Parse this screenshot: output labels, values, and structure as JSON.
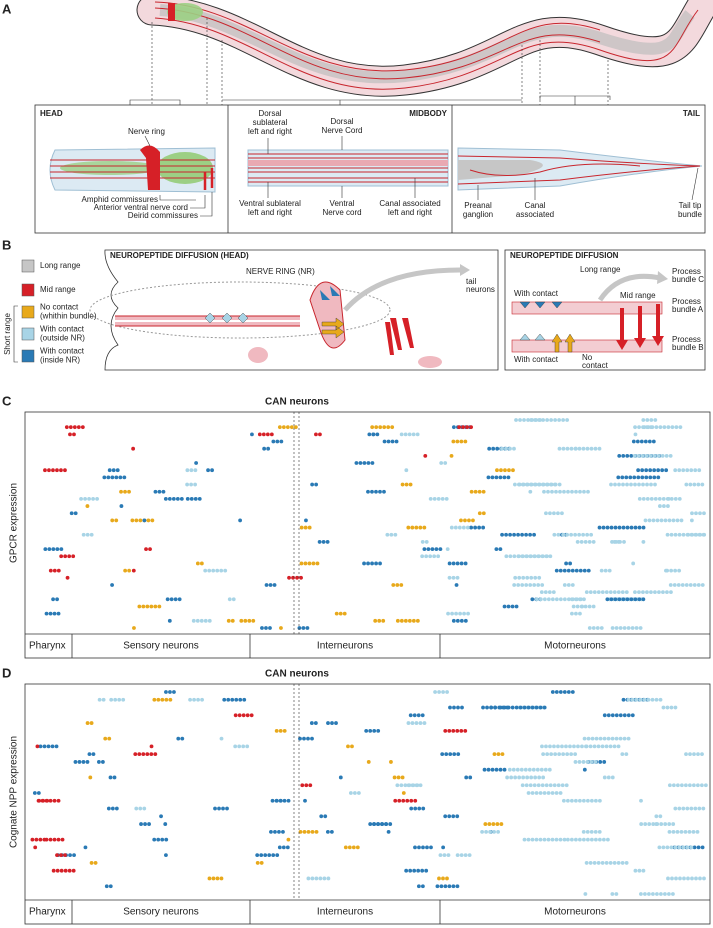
{
  "panel_a": {
    "letter": "A",
    "head": {
      "title": "HEAD",
      "nerve_ring": "Nerve ring",
      "amphid": "Amphid commissures",
      "avnc": "Anterior ventral nerve cord",
      "deirid": "Deirid  commissures"
    },
    "midbody": {
      "title": "MIDBODY",
      "dorsal_sublateral": [
        "Dorsal",
        "sublateral",
        "left and right"
      ],
      "dorsal_cord": [
        "Dorsal",
        "Nerve Cord"
      ],
      "ventral_sublateral": [
        "Ventral sublateral",
        "left and right"
      ],
      "ventral_cord": [
        "Ventral",
        "Nerve cord"
      ],
      "canal": [
        "Canal associated",
        "left and right"
      ]
    },
    "tail": {
      "title": "TAIL",
      "preanal": [
        "Preanal",
        "ganglion"
      ],
      "canal": [
        "Canal",
        "associated"
      ],
      "tip": [
        "Tail tip",
        "bundle"
      ]
    }
  },
  "panel_b": {
    "letter": "B",
    "legend": [
      {
        "lines": [
          "Long range"
        ],
        "color": "#c6c6c6"
      },
      {
        "lines": [
          "Mid range"
        ],
        "color": "#d62027"
      },
      {
        "lines": [
          "No contact",
          "(whithin bundle)"
        ],
        "color": "#e8a91b"
      },
      {
        "lines": [
          "With contact",
          "(outside NR)"
        ],
        "color": "#a8d4e6"
      },
      {
        "lines": [
          "With contact",
          "(inside NR)"
        ],
        "color": "#2a7ab5"
      }
    ],
    "short_range": "Short range",
    "head_title": "NEUROPEPTIDE DIFFUSION (HEAD)",
    "nerve_ring": "NERVE RING (NR)",
    "tail_neurons": [
      "tail",
      "neurons"
    ],
    "diffusion_title": "NEUROPEPTIDE DIFFUSION",
    "long_range": "Long range",
    "bundle_c": [
      "Process",
      "bundle C"
    ],
    "with_contact_top": "With contact",
    "mid_range": "Mid range",
    "bundle_a": [
      "Process",
      "bundle A"
    ],
    "bundle_b": [
      "Process",
      "bundle B"
    ],
    "with_contact_bottom": "With contact",
    "no_contact": [
      "No",
      "contact"
    ]
  },
  "panel_c": {
    "letter": "C",
    "title": "CAN neurons",
    "y_label": "GPCR expression",
    "groups": [
      "Pharynx",
      "Sensory neurons",
      "Interneurons",
      "Motorneurons"
    ]
  },
  "panel_d": {
    "letter": "D",
    "title": "CAN neurons",
    "y_label": "Cognate NPP expression",
    "groups": [
      "Pharynx",
      "Sensory neurons",
      "Interneurons",
      "Motorneurons"
    ]
  }
}
